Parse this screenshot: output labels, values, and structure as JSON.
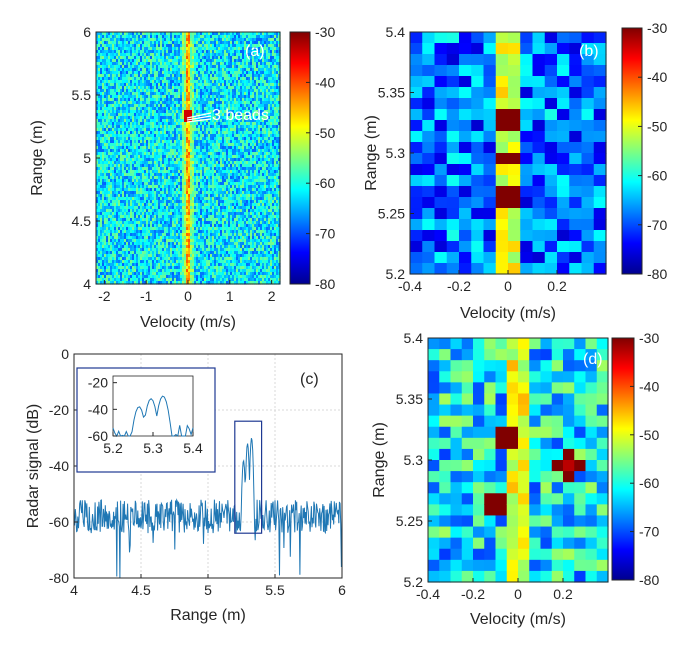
{
  "chart_data": [
    {
      "id": "a",
      "type": "heatmap",
      "panel_label": "(a)",
      "xlabel": "Velocity (m/s)",
      "ylabel": "Range (m)",
      "xlim": [
        -2.2,
        2.2
      ],
      "ylim": [
        4,
        6
      ],
      "xticks": [
        "-2",
        "-1",
        "0",
        "1",
        "2"
      ],
      "xtick_values": [
        -2,
        -1,
        0,
        1,
        2
      ],
      "yticks": [
        "4",
        "4.5",
        "5",
        "5.5",
        "6"
      ],
      "ytick_values": [
        4,
        4.5,
        5,
        5.5,
        6
      ],
      "annotation": {
        "text": "3 beads",
        "range_m": 5.33,
        "velocity_ms": 0
      },
      "colorbar": {
        "min": -80,
        "max": -30,
        "ticks": [
          "-30",
          "-40",
          "-50",
          "-60",
          "-70",
          "-80"
        ]
      },
      "background_level_db": -62,
      "zero_velocity_ridge_db": -45
    },
    {
      "id": "b",
      "type": "heatmap",
      "panel_label": "(b)",
      "xlabel": "Velocity (m/s)",
      "ylabel": "Range (m)",
      "xlim": [
        -0.4,
        0.4
      ],
      "ylim": [
        5.2,
        5.4
      ],
      "xticks": [
        "-0.4",
        "-0.2",
        "0",
        "0.2"
      ],
      "xtick_values": [
        -0.4,
        -0.2,
        0,
        0.2
      ],
      "yticks": [
        "5.2",
        "5.25",
        "5.3",
        "5.35",
        "5.4"
      ],
      "ytick_values": [
        5.2,
        5.25,
        5.3,
        5.35,
        5.4
      ],
      "colorbar": {
        "min": -80,
        "max": -30,
        "ticks": [
          "-30",
          "-40",
          "-50",
          "-60",
          "-70",
          "-80"
        ]
      },
      "peaks": [
        {
          "velocity_ms": 0,
          "range_m": 5.325,
          "value_db": -32
        },
        {
          "velocity_ms": 0,
          "range_m": 5.295,
          "value_db": -33
        },
        {
          "velocity_ms": 0,
          "range_m": 5.265,
          "value_db": -34
        }
      ],
      "ridge_db": -50
    },
    {
      "id": "c",
      "type": "line",
      "panel_label": "(c)",
      "xlabel": "Range (m)",
      "ylabel": "Radar signal (dB)",
      "xlim": [
        4,
        6
      ],
      "ylim": [
        -80,
        0
      ],
      "xticks": [
        "4",
        "4.5",
        "5",
        "5.5",
        "6"
      ],
      "xtick_values": [
        4,
        4.5,
        5,
        5.5,
        6
      ],
      "yticks": [
        "0",
        "-20",
        "-40",
        "-60",
        "-80"
      ],
      "ytick_values": [
        0,
        -20,
        -40,
        -60,
        -80
      ],
      "grid": true,
      "color": "#1f77b4",
      "baseline_db": -58,
      "noise_amplitude_db": 6,
      "peaks": [
        {
          "range_m": 5.265,
          "value_db": -38
        },
        {
          "range_m": 5.295,
          "value_db": -32
        },
        {
          "range_m": 5.325,
          "value_db": -30
        }
      ],
      "highlight_box": {
        "x": [
          5.2,
          5.4
        ],
        "y": [
          -64,
          -24
        ]
      },
      "inset": {
        "xlim": [
          5.2,
          5.4
        ],
        "ylim": [
          -60,
          -15
        ],
        "xticks": [
          "5.2",
          "5.3",
          "5.4"
        ],
        "xtick_values": [
          5.2,
          5.3,
          5.4
        ],
        "yticks": [
          "-20",
          "-40",
          "-60"
        ],
        "ytick_values": [
          -20,
          -40,
          -60
        ]
      }
    },
    {
      "id": "d",
      "type": "heatmap",
      "panel_label": "(d)",
      "xlabel": "Velocity (m/s)",
      "ylabel": "Range (m)",
      "xlim": [
        -0.4,
        0.4
      ],
      "ylim": [
        5.2,
        5.4
      ],
      "xticks": [
        "-0.4",
        "-0.2",
        "0",
        "0.2"
      ],
      "xtick_values": [
        -0.4,
        -0.2,
        0,
        0.2
      ],
      "yticks": [
        "5.2",
        "5.25",
        "5.3",
        "5.35",
        "5.4"
      ],
      "ytick_values": [
        5.2,
        5.25,
        5.3,
        5.35,
        5.4
      ],
      "colorbar": {
        "min": -80,
        "max": -30,
        "ticks": [
          "-30",
          "-40",
          "-50",
          "-60",
          "-70",
          "-80"
        ]
      },
      "peaks": [
        {
          "velocity_ms": -0.05,
          "range_m": 5.32,
          "value_db": -31
        },
        {
          "velocity_ms": 0.22,
          "range_m": 5.295,
          "value_db": -33
        },
        {
          "velocity_ms": -0.1,
          "range_m": 5.265,
          "value_db": -31
        }
      ],
      "ridge_db": -50
    }
  ]
}
